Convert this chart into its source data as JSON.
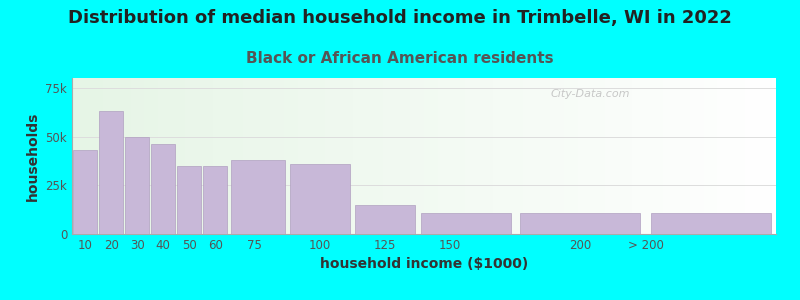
{
  "title": "Distribution of median household income in Trimbelle, WI in 2022",
  "subtitle": "Black or African American residents",
  "xlabel": "household income ($1000)",
  "ylabel": "households",
  "background_outer": "#00FFFF",
  "background_inner_left": "#e6f5e6",
  "background_inner_right": "#ffffff",
  "bar_color": "#c8b8d8",
  "bar_edge_color": "#b0a0c0",
  "bar_heights": [
    43000,
    63000,
    50000,
    46000,
    35000,
    35000,
    38000,
    36000,
    15000,
    11000,
    11000,
    11000
  ],
  "bin_edges": [
    5,
    15,
    25,
    35,
    45,
    55,
    65,
    87.5,
    112.5,
    137.5,
    175,
    225,
    275
  ],
  "xtick_positions": [
    10,
    20,
    30,
    40,
    50,
    60,
    75,
    100,
    125,
    150,
    200,
    225
  ],
  "xtick_labels": [
    "10",
    "20",
    "30",
    "40",
    "50",
    "60",
    "75",
    "100",
    "125",
    "150",
    "200",
    "> 200"
  ],
  "yticks": [
    0,
    25000,
    50000,
    75000
  ],
  "ytick_labels": [
    "0",
    "25k",
    "50k",
    "75k"
  ],
  "ylim": [
    0,
    80000
  ],
  "xlim": [
    5,
    275
  ],
  "title_fontsize": 13,
  "subtitle_fontsize": 11,
  "axis_label_fontsize": 10,
  "tick_fontsize": 8.5,
  "watermark": "City-Data.com",
  "title_color": "#222222",
  "subtitle_color": "#555555",
  "tick_color": "#555555",
  "axis_label_color": "#333333",
  "grid_color": "#dddddd",
  "watermark_color": "#bbbbbb"
}
